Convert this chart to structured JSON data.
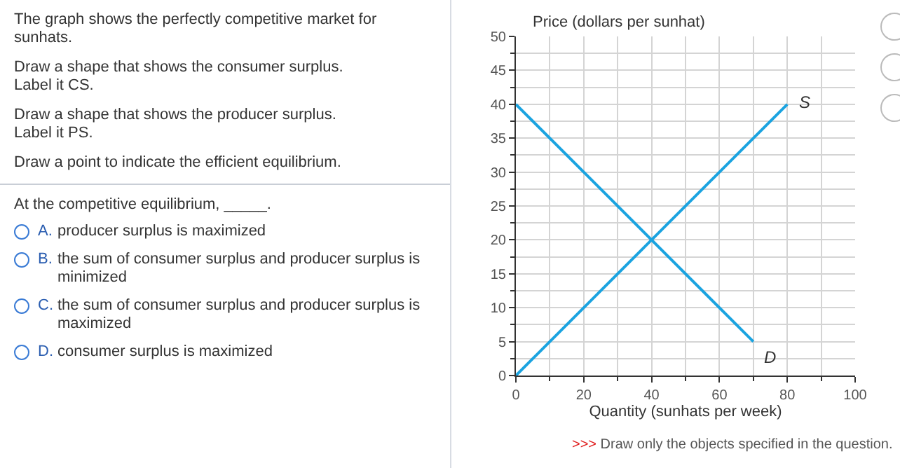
{
  "chart_data": {
    "type": "line",
    "ylabel": "Price (dollars per sunhat)",
    "xlabel": "Quantity (sunhats per week)",
    "xlim": [
      0,
      100
    ],
    "xticks": [
      0,
      20,
      40,
      60,
      80,
      100
    ],
    "ylim": [
      0,
      50
    ],
    "yticks": [
      0,
      5,
      10,
      15,
      20,
      25,
      30,
      35,
      40,
      45,
      50
    ],
    "grid": true,
    "legend": false,
    "marker": "none",
    "line_style": "solid",
    "series": [
      {
        "name": "D",
        "color": "#1aa3e0",
        "x": [
          0,
          70
        ],
        "values": [
          40,
          5
        ]
      },
      {
        "name": "S",
        "color": "#1aa3e0",
        "x": [
          0,
          80
        ],
        "values": [
          0,
          40
        ]
      }
    ],
    "annotations": [
      "The graph shows the perfectly competitive market for sunhats.",
      "Draw a shape that shows the consumer surplus.\nLabel it CS.",
      "Draw a shape that shows the producer surplus.\nLabel it PS.",
      "Draw a point to indicate the efficient equilibrium.",
      "At the competitive equilibrium, _____.",
      "A. producer surplus is maximized",
      "B. the sum of consumer surplus and producer surplus is minimized",
      "C. the sum of consumer surplus and producer surplus is maximized",
      "D. consumer surplus is maximized",
      ">>> Draw only the objects specified in the question."
    ]
  }
}
